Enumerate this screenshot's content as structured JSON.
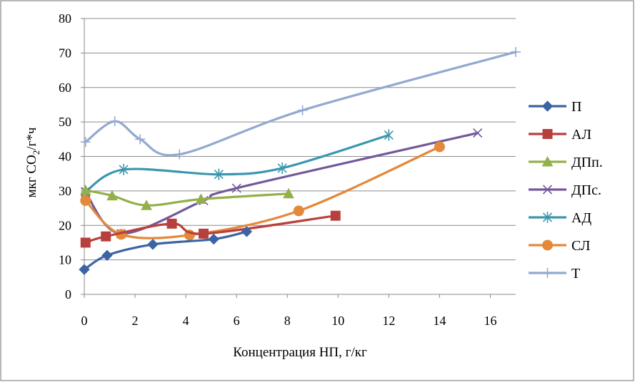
{
  "chart_data": {
    "type": "line",
    "title": "",
    "xlabel": "Концентрация НП, г/кг",
    "ylabel_main": "мкг CO",
    "ylabel_sub": "2",
    "ylabel_tail": "/г*ч",
    "xlim": [
      0,
      17
    ],
    "ylim": [
      0,
      80
    ],
    "xticks": [
      0,
      2,
      4,
      6,
      8,
      10,
      12,
      14,
      16
    ],
    "yticks": [
      0,
      10,
      20,
      30,
      40,
      50,
      60,
      70,
      80
    ],
    "grid": "horizontal",
    "legend_position": "right",
    "series": [
      {
        "name": "П",
        "color": "#3c64a4",
        "marker": "diamond",
        "points": [
          [
            0,
            7.2
          ],
          [
            0.9,
            11.3
          ],
          [
            2.7,
            14.5
          ],
          [
            5.1,
            16.0
          ],
          [
            6.4,
            18.2
          ]
        ]
      },
      {
        "name": "АЛ",
        "color": "#b8403c",
        "marker": "square",
        "points": [
          [
            0.05,
            15.0
          ],
          [
            0.85,
            16.8
          ],
          [
            3.45,
            20.5
          ],
          [
            4.7,
            17.6
          ],
          [
            9.9,
            22.8
          ]
        ]
      },
      {
        "name": "ДПп.",
        "color": "#93b04a",
        "marker": "triangle",
        "points": [
          [
            0.05,
            30.2
          ],
          [
            1.1,
            28.6
          ],
          [
            2.45,
            25.8
          ],
          [
            4.6,
            27.6
          ],
          [
            8.05,
            29.2
          ]
        ]
      },
      {
        "name": "ДПс.",
        "color": "#73589a",
        "marker": "x",
        "points": [
          [
            0.05,
            29.6
          ],
          [
            1.45,
            17.6
          ],
          [
            4.7,
            27.2
          ],
          [
            6.0,
            30.8
          ],
          [
            15.5,
            46.8
          ]
        ]
      },
      {
        "name": "АД",
        "color": "#3a97ad",
        "marker": "asterisk",
        "points": [
          [
            0.05,
            29.8
          ],
          [
            1.55,
            36.2
          ],
          [
            5.3,
            34.8
          ],
          [
            7.8,
            36.6
          ],
          [
            12.0,
            46.2
          ]
        ]
      },
      {
        "name": "СЛ",
        "color": "#e4883a",
        "marker": "circle",
        "points": [
          [
            0.05,
            27.2
          ],
          [
            1.45,
            17.4
          ],
          [
            4.15,
            17.2
          ],
          [
            8.45,
            24.2
          ],
          [
            14.0,
            42.8
          ]
        ]
      },
      {
        "name": "Т",
        "color": "#93a9d0",
        "marker": "plus",
        "points": [
          [
            0.05,
            44.2
          ],
          [
            1.2,
            50.2
          ],
          [
            2.2,
            45.0
          ],
          [
            3.75,
            40.6
          ],
          [
            8.6,
            53.4
          ],
          [
            17.0,
            70.3
          ]
        ]
      }
    ]
  }
}
